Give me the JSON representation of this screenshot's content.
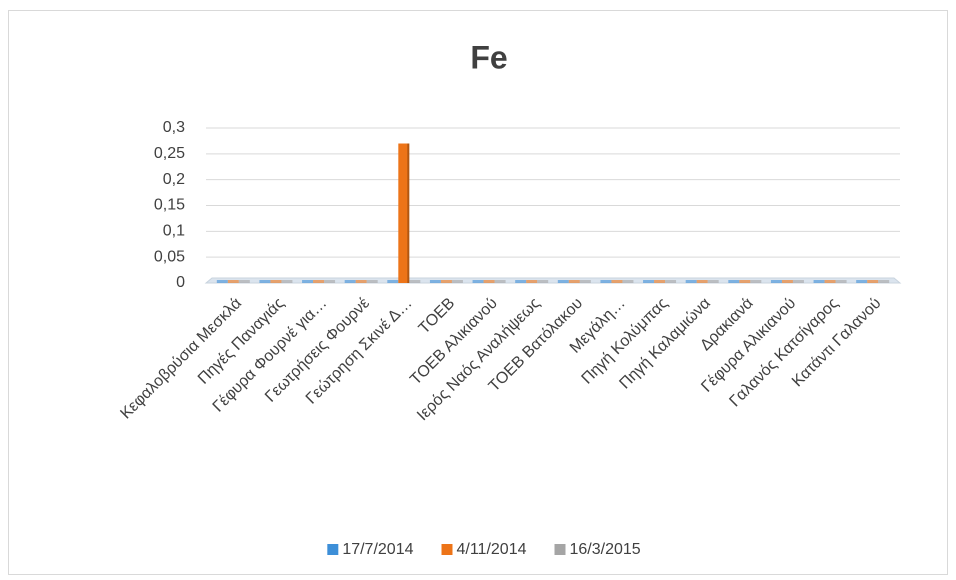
{
  "chart_data": {
    "type": "bar",
    "title": "Fe",
    "categories": [
      "Κεφαλοβρύσια Μεσκλά",
      "Πηγές Παναγιάς",
      "Γέφυρα Φουρνέ για…",
      "Γεωτρήσεις Φουρνέ",
      "Γεώτρηση Σκινέ Δ…",
      "ΤΟΕΒ",
      "ΤΟΕΒ Αλικιανού",
      "Ιερός Ναός Αναλήψεως",
      "ΤΟΕΒ Βατόλακου",
      "Μεγάλη…",
      "Πηγή Κολύμπας",
      "Πηγή Καλαμιώνα",
      "Δρακιανά",
      "Γέφυρα Αλικιανού",
      "Γαλανός Κατσίγαρος",
      "Κατάντι Γαλανού"
    ],
    "series": [
      {
        "name": "17/7/2014",
        "color": "#3d8fd8",
        "values": [
          0,
          0,
          0,
          0,
          0,
          0,
          0,
          0,
          0,
          0,
          0,
          0,
          0,
          0,
          0,
          0
        ]
      },
      {
        "name": "4/11/2014",
        "color": "#ed7418",
        "values": [
          0,
          0,
          0,
          0,
          0.27,
          0,
          0,
          0,
          0,
          0,
          0,
          0,
          0,
          0,
          0,
          0
        ]
      },
      {
        "name": "16/3/2015",
        "color": "#a5a5a5",
        "values": [
          0,
          0,
          0,
          0,
          0,
          0,
          0,
          0,
          0,
          0,
          0,
          0,
          0,
          0,
          0,
          0
        ]
      }
    ],
    "ylim": [
      0,
      0.3
    ],
    "yticks": [
      0,
      {
        "value": 0.05,
        "label": "0,05"
      },
      {
        "value": 0.1,
        "label": "0,1"
      },
      {
        "value": 0.15,
        "label": "0,15"
      },
      {
        "value": 0.2,
        "label": "0,2"
      },
      {
        "value": 0.25,
        "label": "0,25"
      },
      {
        "value": 0.3,
        "label": "0,3"
      }
    ],
    "grid": true,
    "legend": "bottom"
  }
}
